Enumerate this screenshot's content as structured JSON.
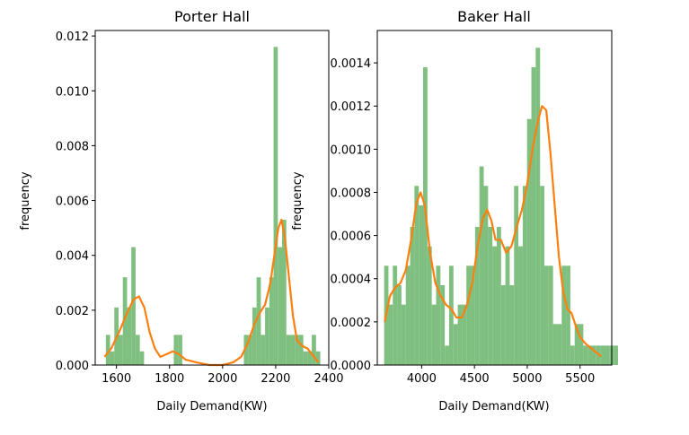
{
  "chart_data": [
    {
      "type": "bar",
      "subtype": "histogram-with-density",
      "title": "Porter Hall",
      "xlabel": "Daily Demand(KW)",
      "ylabel": "frequency",
      "xlim": [
        1520,
        2400
      ],
      "ylim": [
        0,
        0.0122
      ],
      "xticks": [
        1600,
        1800,
        2000,
        2200,
        2400
      ],
      "xtick_labels": [
        "1600",
        "1800",
        "2000",
        "2200",
        "2400"
      ],
      "yticks": [
        0,
        0.002,
        0.004,
        0.006,
        0.008,
        0.01,
        0.012
      ],
      "ytick_labels": [
        "0.000",
        "0.002",
        "0.004",
        "0.006",
        "0.008",
        "0.010",
        "0.012"
      ],
      "bar_color": "#7fbf7f",
      "line_color": "#ff7f0e",
      "bin_width": 16,
      "bins": [
        {
          "x": 1560,
          "h": 0.0011
        },
        {
          "x": 1576,
          "h": 0.0005
        },
        {
          "x": 1592,
          "h": 0.0021
        },
        {
          "x": 1608,
          "h": 0.0011
        },
        {
          "x": 1624,
          "h": 0.0032
        },
        {
          "x": 1640,
          "h": 0.0021
        },
        {
          "x": 1656,
          "h": 0.0043
        },
        {
          "x": 1672,
          "h": 0.0011
        },
        {
          "x": 1688,
          "h": 0.0005
        },
        {
          "x": 1816,
          "h": 0.0011
        },
        {
          "x": 1832,
          "h": 0.0011
        },
        {
          "x": 2080,
          "h": 0.0011
        },
        {
          "x": 2096,
          "h": 0.0011
        },
        {
          "x": 2112,
          "h": 0.0021
        },
        {
          "x": 2128,
          "h": 0.0032
        },
        {
          "x": 2144,
          "h": 0.0011
        },
        {
          "x": 2160,
          "h": 0.0021
        },
        {
          "x": 2176,
          "h": 0.0032
        },
        {
          "x": 2192,
          "h": 0.0116
        },
        {
          "x": 2208,
          "h": 0.0043
        },
        {
          "x": 2224,
          "h": 0.0053
        },
        {
          "x": 2240,
          "h": 0.0011
        },
        {
          "x": 2256,
          "h": 0.0011
        },
        {
          "x": 2272,
          "h": 0.0011
        },
        {
          "x": 2288,
          "h": 0.0011
        },
        {
          "x": 2304,
          "h": 0.0005
        },
        {
          "x": 2320,
          "h": 0.0005
        },
        {
          "x": 2336,
          "h": 0.0011
        },
        {
          "x": 2352,
          "h": 0.0005
        }
      ],
      "density": [
        [
          1555,
          0.0003
        ],
        [
          1580,
          0.0006
        ],
        [
          1610,
          0.0012
        ],
        [
          1640,
          0.0019
        ],
        [
          1665,
          0.0024
        ],
        [
          1685,
          0.0025
        ],
        [
          1705,
          0.0021
        ],
        [
          1725,
          0.0012
        ],
        [
          1745,
          0.0006
        ],
        [
          1765,
          0.0003
        ],
        [
          1790,
          0.0004
        ],
        [
          1812,
          0.0005
        ],
        [
          1835,
          0.0004
        ],
        [
          1860,
          0.0002
        ],
        [
          1900,
          0.0001
        ],
        [
          1950,
          0.0
        ],
        [
          2000,
          0.0
        ],
        [
          2040,
          0.0001
        ],
        [
          2070,
          0.0003
        ],
        [
          2095,
          0.0008
        ],
        [
          2120,
          0.0015
        ],
        [
          2140,
          0.0019
        ],
        [
          2160,
          0.0022
        ],
        [
          2180,
          0.003
        ],
        [
          2195,
          0.004
        ],
        [
          2210,
          0.005
        ],
        [
          2222,
          0.0053
        ],
        [
          2235,
          0.0046
        ],
        [
          2250,
          0.0032
        ],
        [
          2265,
          0.0018
        ],
        [
          2280,
          0.0009
        ],
        [
          2300,
          0.0007
        ],
        [
          2320,
          0.0006
        ],
        [
          2345,
          0.0003
        ],
        [
          2360,
          0.0001
        ]
      ]
    },
    {
      "type": "bar",
      "subtype": "histogram-with-density",
      "title": "Baker Hall",
      "xlabel": "Daily Demand(KW)",
      "ylabel": "frequency",
      "xlim": [
        3580,
        5800
      ],
      "ylim": [
        0,
        0.00155
      ],
      "xticks": [
        4000,
        4500,
        5000,
        5500
      ],
      "xtick_labels": [
        "4000",
        "4500",
        "5000",
        "5500"
      ],
      "yticks": [
        0,
        0.0002,
        0.0004,
        0.0006,
        0.0008,
        0.001,
        0.0012,
        0.0014
      ],
      "ytick_labels": [
        "0.0000",
        "0.0002",
        "0.0004",
        "0.0006",
        "0.0008",
        "0.0010",
        "0.0012",
        "0.0014"
      ],
      "bar_color": "#7fbf7f",
      "line_color": "#ff7f0e",
      "bin_width": 41,
      "bin_start": 3645,
      "bin_heights": [
        0.00046,
        0.00028,
        0.00046,
        0.00037,
        0.00028,
        0.00046,
        0.00064,
        0.00083,
        0.00074,
        0.00138,
        0.00055,
        0.00028,
        0.00046,
        0.00037,
        9e-05,
        0.00046,
        0.00019,
        0.00028,
        0.00028,
        0.00046,
        0.00046,
        0.00064,
        0.00092,
        0.00083,
        0.00064,
        0.00055,
        0.00064,
        0.00037,
        0.00055,
        0.00037,
        0.00083,
        0.00055,
        0.00083,
        0.00114,
        0.00138,
        0.00147,
        0.00083,
        0.00046,
        0.00046,
        0.00019,
        0.00019,
        0.00046,
        0.00046,
        9e-05,
        0.00019,
        0.00019,
        9e-05,
        9e-05,
        9e-05,
        9e-05,
        9e-05,
        9e-05,
        9e-05,
        9e-05
      ],
      "density": [
        [
          3650,
          0.0002
        ],
        [
          3700,
          0.00032
        ],
        [
          3750,
          0.00036
        ],
        [
          3800,
          0.00038
        ],
        [
          3850,
          0.00044
        ],
        [
          3900,
          0.00058
        ],
        [
          3950,
          0.00075
        ],
        [
          3990,
          0.0008
        ],
        [
          4030,
          0.00074
        ],
        [
          4080,
          0.00052
        ],
        [
          4130,
          0.00038
        ],
        [
          4180,
          0.00032
        ],
        [
          4230,
          0.00028
        ],
        [
          4280,
          0.00026
        ],
        [
          4330,
          0.00022
        ],
        [
          4380,
          0.00022
        ],
        [
          4430,
          0.00028
        ],
        [
          4480,
          0.00038
        ],
        [
          4530,
          0.00055
        ],
        [
          4580,
          0.00068
        ],
        [
          4620,
          0.00072
        ],
        [
          4660,
          0.00067
        ],
        [
          4700,
          0.00058
        ],
        [
          4750,
          0.00058
        ],
        [
          4800,
          0.00052
        ],
        [
          4850,
          0.00055
        ],
        [
          4900,
          0.00064
        ],
        [
          4950,
          0.00072
        ],
        [
          5000,
          0.00084
        ],
        [
          5050,
          0.001
        ],
        [
          5100,
          0.00113
        ],
        [
          5140,
          0.0012
        ],
        [
          5180,
          0.00118
        ],
        [
          5220,
          0.00098
        ],
        [
          5260,
          0.00074
        ],
        [
          5300,
          0.0005
        ],
        [
          5340,
          0.00034
        ],
        [
          5380,
          0.00026
        ],
        [
          5420,
          0.00024
        ],
        [
          5460,
          0.00018
        ],
        [
          5500,
          0.00013
        ],
        [
          5550,
          0.0001
        ],
        [
          5600,
          8e-05
        ],
        [
          5650,
          6e-05
        ],
        [
          5700,
          4e-05
        ]
      ]
    }
  ]
}
